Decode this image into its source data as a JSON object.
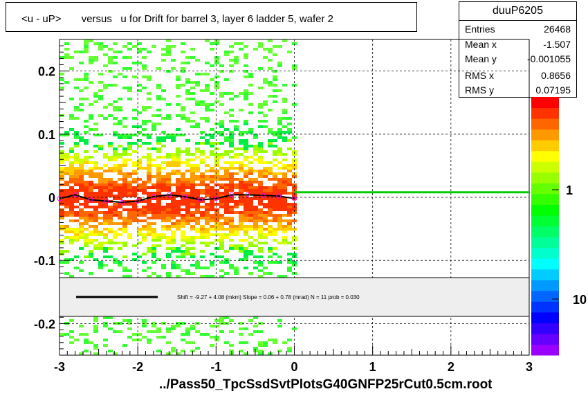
{
  "title": "<u - uP>       versus   u for Drift for barrel 3, layer 6 ladder 5, wafer 2",
  "stats": {
    "name": "duuP6205",
    "rows": [
      {
        "label": "Entries",
        "value": "26468"
      },
      {
        "label": "Mean x",
        "value": "-1.507"
      },
      {
        "label": "Mean y",
        "value": "-0.001055"
      },
      {
        "label": "RMS x",
        "value": "0.8656"
      },
      {
        "label": "RMS y",
        "value": "0.07195"
      }
    ]
  },
  "fit_legend": "Shift =    -9.27 + 4.08 (mkm) Slope =    0.06 + 0.78 (mrad)  N = 11 prob = 0.030",
  "footer": "../Pass50_TpcSsdSvtPlotsG40GNFP25rCut0.5cm.root",
  "colorbar": {
    "labels": [
      "1",
      "10"
    ]
  },
  "colors": {
    "fit_line": "#00cc00",
    "profile": "#000000",
    "points": "#ff00ff"
  },
  "chart_data": {
    "type": "heatmap",
    "title": "<u - uP>       versus   u for Drift for barrel 3, layer 6 ladder 5, wafer 2",
    "xlim": [
      -3,
      3
    ],
    "ylim": [
      -0.25,
      0.25
    ],
    "x_ticks": [
      "-3",
      "-2",
      "-1",
      "0",
      "1",
      "2",
      "3"
    ],
    "y_ticks": [
      "-0.2",
      "-0.1",
      "0",
      "0.1",
      "0.2"
    ],
    "data_x_range": [
      -3,
      0
    ],
    "z_scale": "log",
    "grid": true,
    "fit_line": {
      "x": [
        0,
        3
      ],
      "y": [
        0.008,
        0.008
      ]
    },
    "profile": {
      "x": [
        -3.0,
        -2.8,
        -2.6,
        -2.4,
        -2.2,
        -2.0,
        -1.8,
        -1.6,
        -1.4,
        -1.2,
        -1.0,
        -0.8,
        -0.6,
        -0.4,
        -0.2,
        0.0
      ],
      "y": [
        -0.002,
        0.004,
        -0.004,
        -0.006,
        -0.008,
        -0.006,
        0.001,
        0.004,
        0.001,
        -0.004,
        -0.002,
        0.004,
        0.004,
        0.003,
        0.002,
        -0.002
      ]
    }
  }
}
